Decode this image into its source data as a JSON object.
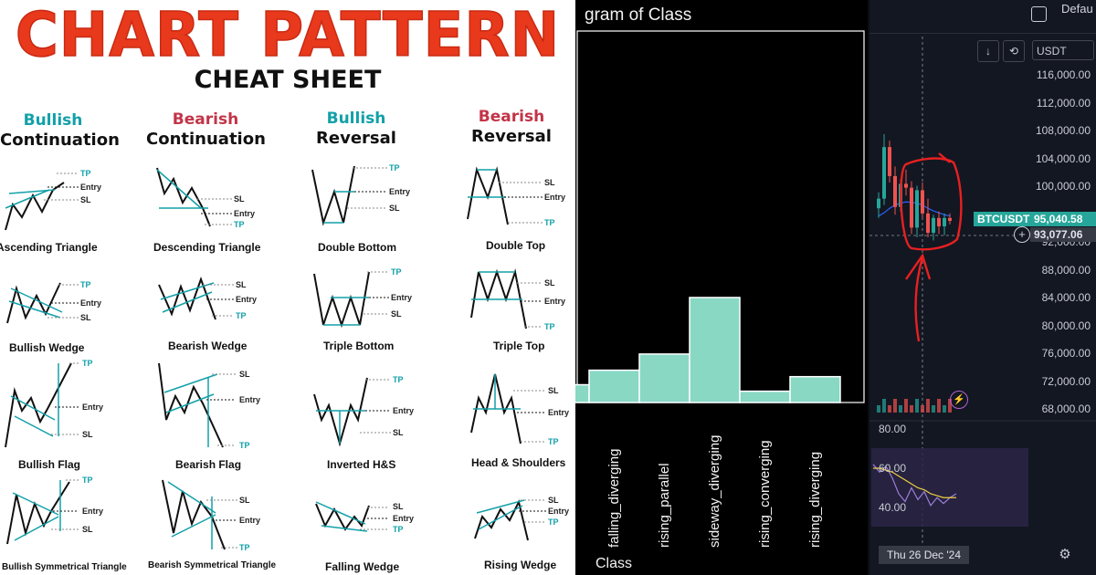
{
  "cheat_sheet": {
    "title": "CHART PATTERN",
    "subtitle": "CHEAT SHEET",
    "columns": [
      {
        "kind": "Bullish",
        "type": "Continuation",
        "tone": "bull"
      },
      {
        "kind": "Bearish",
        "type": "Continuation",
        "tone": "bear"
      },
      {
        "kind": "Bullish",
        "type": "Reversal",
        "tone": "bull"
      },
      {
        "kind": "Bearish",
        "type": "Reversal",
        "tone": "bear"
      }
    ],
    "patterns": [
      [
        "Ascending Triangle",
        "Descending Triangle",
        "Double Bottom",
        "Double Top"
      ],
      [
        "Bullish Wedge",
        "Bearish Wedge",
        "Triple Bottom",
        "Triple Top"
      ],
      [
        "Bullish Flag",
        "Bearish Flag",
        "Inverted H&S",
        "Head & Shoulders"
      ],
      [
        "Bullish Symmetrical Triangle",
        "Bearish Symmetrical Triangle",
        "Falling Wedge",
        "Rising Wedge"
      ]
    ],
    "level_labels": {
      "tp": "TP",
      "entry": "Entry",
      "sl": "SL"
    },
    "colors": {
      "title": "#e8391d",
      "bull": "#12a0a8",
      "bear": "#c23448"
    }
  },
  "histogram": {
    "title": "gram of Class",
    "xlabel": "Class",
    "chart_data": {
      "type": "bar",
      "title": "gram of Class",
      "xlabel": "Class",
      "ylabel": "",
      "categories": [
        "",
        "falling_diverging",
        "rising_parallel",
        "sideway_diverging",
        "rising_converging",
        "rising_diverging"
      ],
      "values": [
        1.1,
        2.0,
        3.0,
        6.5,
        0.7,
        1.6
      ],
      "ylim": [
        0,
        23
      ],
      "grid": false,
      "bar_color": "#88d8c4",
      "edge_color": "#ffffff"
    }
  },
  "trading": {
    "header_label": "Defau",
    "currency_select": "USDT",
    "pair_label": "BTCUSDT",
    "last_price": "95,040.58",
    "crosshair_price": "93,077.06",
    "date_label": "Thu 26 Dec '24",
    "price_axis": [
      "116,000.00",
      "112,000.00",
      "108,000.00",
      "104,000.00",
      "100,000.00",
      "96,000.00",
      "92,000.00",
      "88,000.00",
      "84,000.00",
      "80,000.00",
      "76,000.00",
      "72,000.00",
      "68,000.00"
    ],
    "rsi_axis": [
      "80.00",
      "60.00",
      "40.00"
    ],
    "icons": [
      "checkbox-icon",
      "download-arrow-icon",
      "refresh-icon",
      "plus-circle-icon",
      "lightning-icon",
      "settings-icon"
    ],
    "colors": {
      "up": "#26a69a",
      "down": "#ef5350",
      "badge_bg": "#26a69a",
      "rsi_line": "#9c7fd6",
      "rsi_ma": "#f0d040",
      "annotation": "#e82020"
    },
    "chart_data": {
      "type": "candlestick",
      "ylim": [
        66000,
        118000
      ],
      "candles": [
        {
          "o": 97000,
          "h": 99500,
          "l": 95500,
          "c": 98500
        },
        {
          "o": 98500,
          "h": 108500,
          "l": 97500,
          "c": 106500
        },
        {
          "o": 106500,
          "h": 107500,
          "l": 101000,
          "c": 102000
        },
        {
          "o": 102000,
          "h": 103500,
          "l": 96000,
          "c": 97200
        },
        {
          "o": 97200,
          "h": 101500,
          "l": 96500,
          "c": 100800
        },
        {
          "o": 100800,
          "h": 103000,
          "l": 99000,
          "c": 100200
        },
        {
          "o": 100200,
          "h": 101200,
          "l": 93000,
          "c": 94000
        },
        {
          "o": 94000,
          "h": 100500,
          "l": 92500,
          "c": 99800
        },
        {
          "o": 99800,
          "h": 101000,
          "l": 95500,
          "c": 96200
        },
        {
          "o": 96200,
          "h": 98500,
          "l": 92500,
          "c": 93200
        },
        {
          "o": 93200,
          "h": 96000,
          "l": 92000,
          "c": 95500
        },
        {
          "o": 95500,
          "h": 96500,
          "l": 93000,
          "c": 94200
        },
        {
          "o": 94200,
          "h": 96200,
          "l": 92800,
          "c": 95500
        },
        {
          "o": 95500,
          "h": 96200,
          "l": 94500,
          "c": 95040
        }
      ],
      "ma": [
        95800,
        96300,
        97000,
        97500,
        97800,
        98000,
        97900,
        97800,
        97500,
        97000,
        96600,
        96300,
        96000,
        95800
      ],
      "rsi": [
        62,
        58,
        61,
        55,
        47,
        43,
        50,
        44,
        48,
        41,
        45,
        42,
        45,
        47
      ],
      "rsi_ma": [
        60,
        60,
        59,
        58,
        56,
        54,
        52,
        50,
        49,
        47,
        46,
        45,
        45,
        45
      ]
    }
  }
}
